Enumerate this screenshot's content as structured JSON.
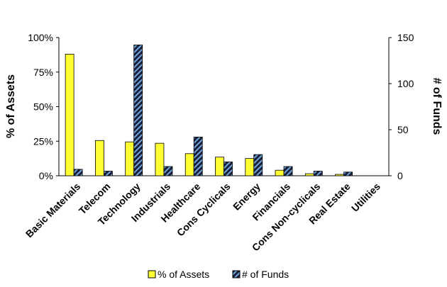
{
  "chart_data": {
    "type": "bar",
    "categories": [
      "Basic Materials",
      "Telecom",
      "Technology",
      "Industrials",
      "Healthcare",
      "Cons Cyclicals",
      "Energy",
      "Financials",
      "Cons Non-cyclicals",
      "Real Estate",
      "Utilities"
    ],
    "series": [
      {
        "name": "% of Assets",
        "axis": "left",
        "color": "#ffff33",
        "values": [
          88,
          25.5,
          24.5,
          23.5,
          16,
          13.5,
          12.5,
          4,
          1.5,
          1,
          0
        ]
      },
      {
        "name": "# of Funds",
        "axis": "right",
        "color": "#1c1f3a",
        "hatch": "#6fa8dc",
        "values": [
          7,
          5,
          142,
          10,
          42,
          15,
          23,
          10,
          5,
          4,
          0
        ]
      }
    ],
    "left_axis": {
      "label": "% of Assets",
      "min": 0,
      "max": 100,
      "ticks": [
        "0%",
        "25%",
        "50%",
        "75%",
        "100%"
      ]
    },
    "right_axis": {
      "label": "# of Funds",
      "min": 0,
      "max": 150,
      "ticks": [
        "0",
        "50",
        "100",
        "150"
      ]
    },
    "legend": "bottom",
    "grid": false
  }
}
